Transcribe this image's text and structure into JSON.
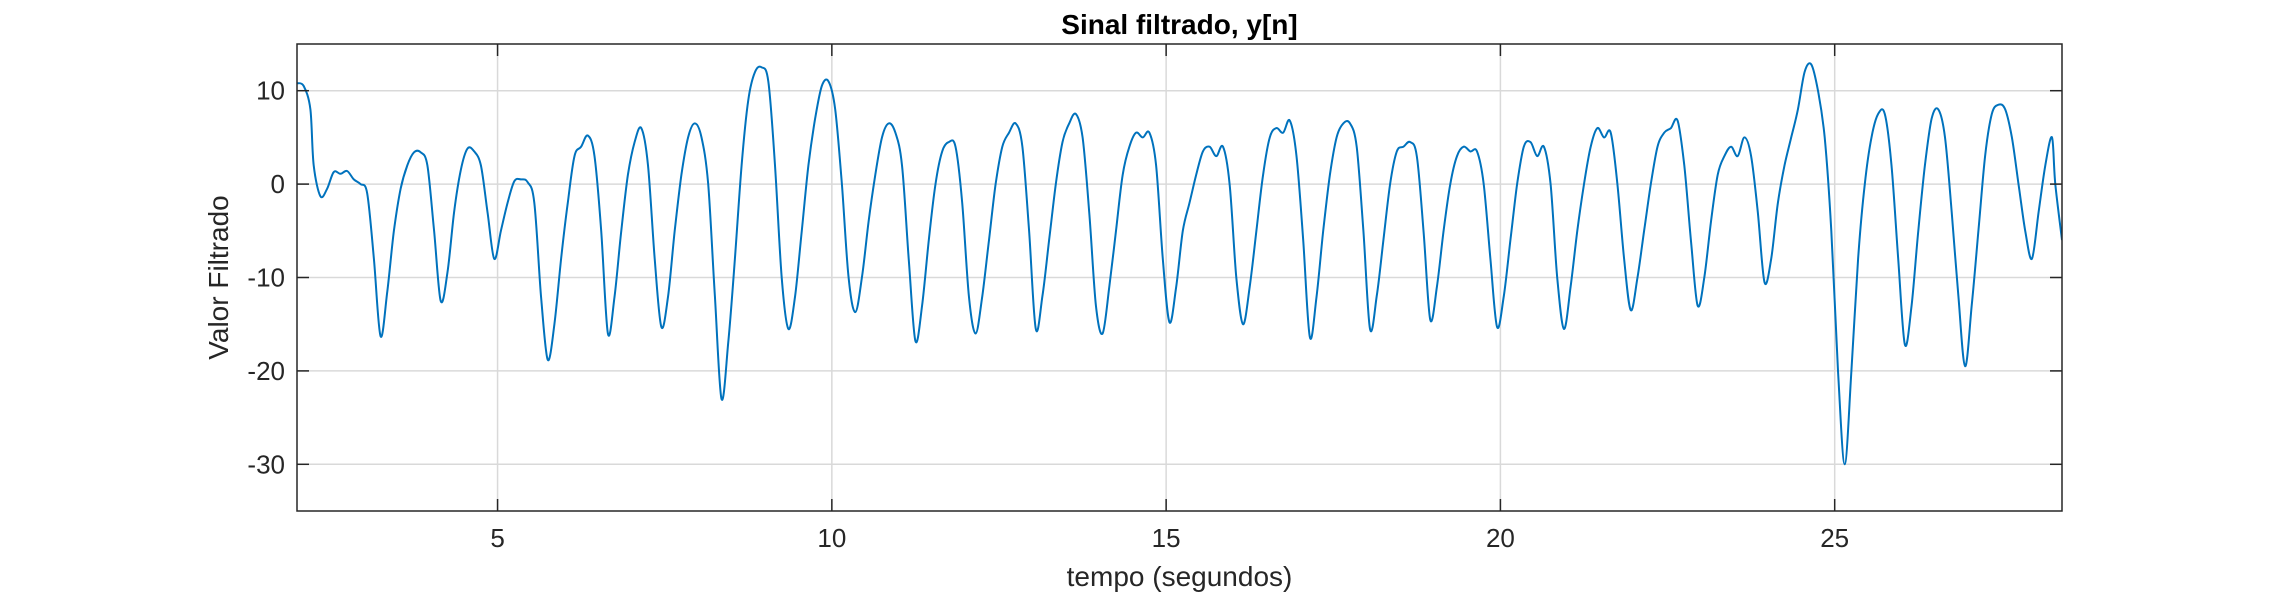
{
  "chart_data": {
    "type": "line",
    "title": "Sinal filtrado, y[n]",
    "xlabel": "tempo (segundos)",
    "ylabel": "Valor Filtrado",
    "xlim": [
      2.0,
      28.4
    ],
    "ylim": [
      -35,
      15
    ],
    "xticks": [
      5,
      10,
      15,
      20,
      25
    ],
    "yticks": [
      -30,
      -20,
      -10,
      0,
      10
    ],
    "grid": true,
    "legend": "none",
    "series": [
      {
        "color": "#0072BD",
        "points": [
          [
            2.0,
            10.8
          ],
          [
            2.1,
            10.5
          ],
          [
            2.2,
            8.0
          ],
          [
            2.25,
            2.0
          ],
          [
            2.35,
            -1.3
          ],
          [
            2.45,
            -0.5
          ],
          [
            2.55,
            1.3
          ],
          [
            2.65,
            1.1
          ],
          [
            2.75,
            1.4
          ],
          [
            2.85,
            0.5
          ],
          [
            2.95,
            0.0
          ],
          [
            3.05,
            -1.0
          ],
          [
            3.15,
            -8.0
          ],
          [
            3.25,
            -16.3
          ],
          [
            3.35,
            -11.5
          ],
          [
            3.45,
            -5.0
          ],
          [
            3.55,
            -0.5
          ],
          [
            3.65,
            2.0
          ],
          [
            3.75,
            3.4
          ],
          [
            3.85,
            3.4
          ],
          [
            3.95,
            2.0
          ],
          [
            4.05,
            -5.0
          ],
          [
            4.15,
            -12.5
          ],
          [
            4.25,
            -9.5
          ],
          [
            4.35,
            -3.0
          ],
          [
            4.45,
            1.5
          ],
          [
            4.55,
            3.8
          ],
          [
            4.65,
            3.5
          ],
          [
            4.75,
            2.0
          ],
          [
            4.85,
            -3.0
          ],
          [
            4.95,
            -8.0
          ],
          [
            5.05,
            -5.0
          ],
          [
            5.15,
            -2.0
          ],
          [
            5.25,
            0.3
          ],
          [
            5.35,
            0.5
          ],
          [
            5.45,
            0.2
          ],
          [
            5.55,
            -2.0
          ],
          [
            5.65,
            -12.0
          ],
          [
            5.75,
            -18.8
          ],
          [
            5.85,
            -15.0
          ],
          [
            5.95,
            -8.0
          ],
          [
            6.05,
            -2.0
          ],
          [
            6.15,
            3.0
          ],
          [
            6.25,
            4.0
          ],
          [
            6.35,
            5.2
          ],
          [
            6.45,
            3.0
          ],
          [
            6.55,
            -5.0
          ],
          [
            6.65,
            -16.0
          ],
          [
            6.75,
            -12.0
          ],
          [
            6.85,
            -5.0
          ],
          [
            6.95,
            1.0
          ],
          [
            7.05,
            4.5
          ],
          [
            7.15,
            6.0
          ],
          [
            7.25,
            2.0
          ],
          [
            7.35,
            -8.0
          ],
          [
            7.45,
            -15.3
          ],
          [
            7.55,
            -12.0
          ],
          [
            7.65,
            -5.0
          ],
          [
            7.75,
            1.0
          ],
          [
            7.85,
            5.0
          ],
          [
            7.95,
            6.5
          ],
          [
            8.05,
            5.0
          ],
          [
            8.15,
            0.0
          ],
          [
            8.25,
            -12.0
          ],
          [
            8.35,
            -23.0
          ],
          [
            8.45,
            -17.0
          ],
          [
            8.55,
            -8.0
          ],
          [
            8.65,
            2.0
          ],
          [
            8.75,
            9.0
          ],
          [
            8.85,
            12.0
          ],
          [
            8.95,
            12.5
          ],
          [
            9.05,
            11.0
          ],
          [
            9.15,
            2.0
          ],
          [
            9.25,
            -10.0
          ],
          [
            9.35,
            -15.5
          ],
          [
            9.45,
            -12.0
          ],
          [
            9.55,
            -5.0
          ],
          [
            9.65,
            2.0
          ],
          [
            9.75,
            7.0
          ],
          [
            9.85,
            10.5
          ],
          [
            9.95,
            11.0
          ],
          [
            10.05,
            8.0
          ],
          [
            10.15,
            0.0
          ],
          [
            10.25,
            -10.0
          ],
          [
            10.35,
            -13.7
          ],
          [
            10.45,
            -10.0
          ],
          [
            10.55,
            -4.0
          ],
          [
            10.65,
            1.0
          ],
          [
            10.75,
            5.0
          ],
          [
            10.85,
            6.5
          ],
          [
            10.95,
            5.5
          ],
          [
            11.05,
            2.0
          ],
          [
            11.15,
            -8.0
          ],
          [
            11.25,
            -16.8
          ],
          [
            11.35,
            -13.0
          ],
          [
            11.45,
            -6.0
          ],
          [
            11.55,
            0.0
          ],
          [
            11.65,
            3.5
          ],
          [
            11.75,
            4.5
          ],
          [
            11.85,
            4.0
          ],
          [
            11.95,
            -2.0
          ],
          [
            12.05,
            -12.0
          ],
          [
            12.15,
            -16.0
          ],
          [
            12.25,
            -12.0
          ],
          [
            12.35,
            -6.0
          ],
          [
            12.45,
            0.0
          ],
          [
            12.55,
            4.0
          ],
          [
            12.65,
            5.5
          ],
          [
            12.75,
            6.5
          ],
          [
            12.85,
            4.0
          ],
          [
            12.95,
            -5.0
          ],
          [
            13.05,
            -15.5
          ],
          [
            13.15,
            -12.0
          ],
          [
            13.25,
            -6.0
          ],
          [
            13.35,
            0.0
          ],
          [
            13.45,
            4.5
          ],
          [
            13.55,
            6.5
          ],
          [
            13.65,
            7.5
          ],
          [
            13.75,
            5.0
          ],
          [
            13.85,
            -3.0
          ],
          [
            13.95,
            -13.0
          ],
          [
            14.05,
            -16.0
          ],
          [
            14.15,
            -11.0
          ],
          [
            14.25,
            -5.0
          ],
          [
            14.35,
            1.0
          ],
          [
            14.45,
            4.0
          ],
          [
            14.55,
            5.5
          ],
          [
            14.65,
            5.0
          ],
          [
            14.75,
            5.5
          ],
          [
            14.85,
            2.0
          ],
          [
            14.95,
            -8.0
          ],
          [
            15.05,
            -14.8
          ],
          [
            15.15,
            -11.0
          ],
          [
            15.25,
            -5.0
          ],
          [
            15.35,
            -2.0
          ],
          [
            15.45,
            1.0
          ],
          [
            15.55,
            3.5
          ],
          [
            15.65,
            4.0
          ],
          [
            15.75,
            3.0
          ],
          [
            15.85,
            4.0
          ],
          [
            15.95,
            0.0
          ],
          [
            16.05,
            -10.0
          ],
          [
            16.15,
            -15.0
          ],
          [
            16.25,
            -11.0
          ],
          [
            16.35,
            -5.0
          ],
          [
            16.45,
            1.0
          ],
          [
            16.55,
            5.0
          ],
          [
            16.65,
            6.0
          ],
          [
            16.75,
            5.5
          ],
          [
            16.85,
            6.8
          ],
          [
            16.95,
            3.0
          ],
          [
            17.05,
            -6.0
          ],
          [
            17.15,
            -16.4
          ],
          [
            17.25,
            -12.0
          ],
          [
            17.35,
            -5.0
          ],
          [
            17.45,
            1.0
          ],
          [
            17.55,
            5.0
          ],
          [
            17.65,
            6.5
          ],
          [
            17.75,
            6.5
          ],
          [
            17.85,
            4.0
          ],
          [
            17.95,
            -5.0
          ],
          [
            18.05,
            -15.5
          ],
          [
            18.15,
            -12.0
          ],
          [
            18.25,
            -6.0
          ],
          [
            18.35,
            0.0
          ],
          [
            18.45,
            3.5
          ],
          [
            18.55,
            4.0
          ],
          [
            18.65,
            4.5
          ],
          [
            18.75,
            3.0
          ],
          [
            18.85,
            -5.0
          ],
          [
            18.95,
            -14.5
          ],
          [
            19.05,
            -11.0
          ],
          [
            19.15,
            -5.0
          ],
          [
            19.25,
            0.0
          ],
          [
            19.35,
            3.0
          ],
          [
            19.45,
            4.0
          ],
          [
            19.55,
            3.5
          ],
          [
            19.65,
            3.5
          ],
          [
            19.75,
            0.0
          ],
          [
            19.85,
            -8.0
          ],
          [
            19.95,
            -15.3
          ],
          [
            20.05,
            -12.0
          ],
          [
            20.15,
            -6.0
          ],
          [
            20.25,
            0.0
          ],
          [
            20.35,
            4.0
          ],
          [
            20.45,
            4.5
          ],
          [
            20.55,
            3.0
          ],
          [
            20.65,
            4.0
          ],
          [
            20.75,
            0.0
          ],
          [
            20.85,
            -10.0
          ],
          [
            20.95,
            -15.5
          ],
          [
            21.05,
            -11.0
          ],
          [
            21.15,
            -5.0
          ],
          [
            21.25,
            0.0
          ],
          [
            21.35,
            4.0
          ],
          [
            21.45,
            6.0
          ],
          [
            21.55,
            5.0
          ],
          [
            21.65,
            5.5
          ],
          [
            21.75,
            0.0
          ],
          [
            21.85,
            -8.0
          ],
          [
            21.95,
            -13.5
          ],
          [
            22.05,
            -10.0
          ],
          [
            22.15,
            -5.0
          ],
          [
            22.25,
            0.0
          ],
          [
            22.35,
            4.0
          ],
          [
            22.45,
            5.5
          ],
          [
            22.55,
            6.0
          ],
          [
            22.65,
            6.8
          ],
          [
            22.75,
            2.0
          ],
          [
            22.85,
            -6.0
          ],
          [
            22.95,
            -13.0
          ],
          [
            23.05,
            -10.0
          ],
          [
            23.15,
            -4.0
          ],
          [
            23.25,
            1.0
          ],
          [
            23.35,
            3.0
          ],
          [
            23.45,
            4.0
          ],
          [
            23.55,
            3.0
          ],
          [
            23.65,
            5.0
          ],
          [
            23.75,
            3.0
          ],
          [
            23.85,
            -3.0
          ],
          [
            23.95,
            -10.5
          ],
          [
            24.05,
            -8.0
          ],
          [
            24.15,
            -2.0
          ],
          [
            24.25,
            2.0
          ],
          [
            24.35,
            5.0
          ],
          [
            24.45,
            8.0
          ],
          [
            24.55,
            12.0
          ],
          [
            24.65,
            12.8
          ],
          [
            24.75,
            10.0
          ],
          [
            24.85,
            5.0
          ],
          [
            24.95,
            -5.0
          ],
          [
            25.05,
            -20.0
          ],
          [
            25.15,
            -30.0
          ],
          [
            25.25,
            -20.0
          ],
          [
            25.35,
            -8.0
          ],
          [
            25.45,
            0.0
          ],
          [
            25.55,
            5.0
          ],
          [
            25.65,
            7.5
          ],
          [
            25.75,
            7.5
          ],
          [
            25.85,
            2.0
          ],
          [
            25.95,
            -8.0
          ],
          [
            26.05,
            -17.2
          ],
          [
            26.15,
            -13.0
          ],
          [
            26.25,
            -5.0
          ],
          [
            26.35,
            2.0
          ],
          [
            26.45,
            7.0
          ],
          [
            26.55,
            8.0
          ],
          [
            26.65,
            5.0
          ],
          [
            26.75,
            -3.0
          ],
          [
            26.85,
            -12.0
          ],
          [
            26.95,
            -19.5
          ],
          [
            27.05,
            -13.0
          ],
          [
            27.15,
            -5.0
          ],
          [
            27.25,
            3.0
          ],
          [
            27.35,
            7.5
          ],
          [
            27.45,
            8.5
          ],
          [
            27.55,
            8.0
          ],
          [
            27.65,
            5.0
          ],
          [
            27.75,
            0.0
          ],
          [
            27.85,
            -5.0
          ],
          [
            27.95,
            -8.0
          ],
          [
            28.05,
            -3.0
          ],
          [
            28.15,
            2.0
          ],
          [
            28.25,
            5.0
          ],
          [
            28.3,
            0.0
          ],
          [
            28.4,
            -6.0
          ]
        ]
      }
    ]
  }
}
